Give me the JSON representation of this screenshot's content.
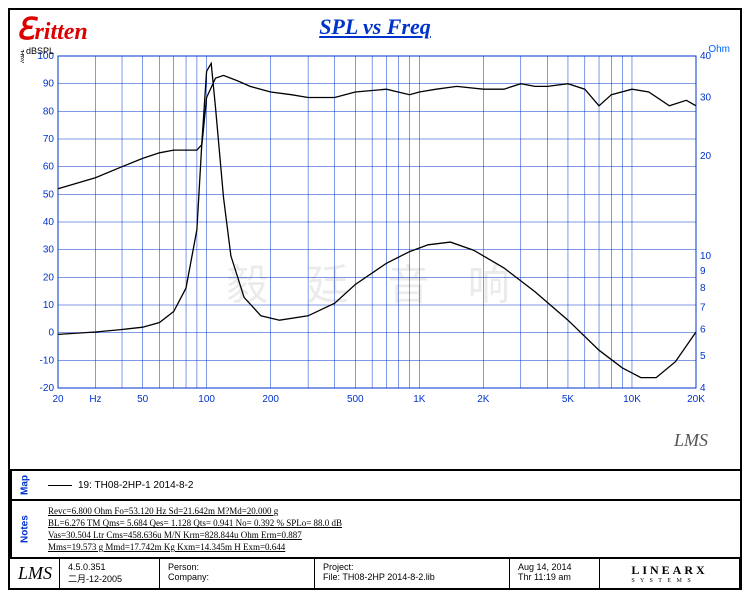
{
  "title": "SPL vs Freq",
  "logo": {
    "main": "ritten",
    "sub": "毅廷音响"
  },
  "watermark": "毅 廷 音 响",
  "lms_mark": "LMS",
  "right_axis_label": "Ohm",
  "left_axis_tag": "dBSPL",
  "chart": {
    "left_ticks": [
      -20,
      -10,
      0,
      10,
      20,
      30,
      40,
      50,
      60,
      70,
      80,
      90,
      100
    ],
    "right_ticks": [
      4,
      5,
      6,
      7,
      8,
      9,
      10,
      20,
      30,
      40
    ],
    "x_ticks": [
      20,
      50,
      100,
      200,
      500,
      "1K",
      "2K",
      "5K",
      "10K",
      "20K"
    ],
    "x_hz_label": "Hz",
    "xlim_log": [
      20,
      20000
    ],
    "ylim_left": [
      -20,
      100
    ],
    "ylim_right_log": [
      4,
      40
    ],
    "colors": {
      "axis": "#0033cc",
      "curve": "#000000",
      "bg": "#ffffff"
    },
    "spl_curve": [
      [
        20,
        52
      ],
      [
        30,
        56
      ],
      [
        40,
        60
      ],
      [
        50,
        63
      ],
      [
        60,
        65
      ],
      [
        70,
        66
      ],
      [
        80,
        66
      ],
      [
        90,
        66
      ],
      [
        95,
        68
      ],
      [
        100,
        85
      ],
      [
        110,
        92
      ],
      [
        120,
        93
      ],
      [
        140,
        91
      ],
      [
        160,
        89
      ],
      [
        200,
        87
      ],
      [
        250,
        86
      ],
      [
        300,
        85
      ],
      [
        400,
        85
      ],
      [
        500,
        87
      ],
      [
        700,
        88
      ],
      [
        900,
        86
      ],
      [
        1000,
        87
      ],
      [
        1200,
        88
      ],
      [
        1500,
        89
      ],
      [
        2000,
        88
      ],
      [
        2500,
        88
      ],
      [
        3000,
        90
      ],
      [
        3500,
        89
      ],
      [
        4000,
        89
      ],
      [
        5000,
        90
      ],
      [
        6000,
        88
      ],
      [
        7000,
        82
      ],
      [
        8000,
        86
      ],
      [
        10000,
        88
      ],
      [
        12000,
        87
      ],
      [
        15000,
        82
      ],
      [
        18000,
        84
      ],
      [
        20000,
        82
      ]
    ],
    "imp_curve": [
      [
        20,
        5.8
      ],
      [
        30,
        5.9
      ],
      [
        40,
        6.0
      ],
      [
        50,
        6.1
      ],
      [
        60,
        6.3
      ],
      [
        70,
        6.8
      ],
      [
        80,
        8.0
      ],
      [
        90,
        12
      ],
      [
        95,
        22
      ],
      [
        100,
        36
      ],
      [
        105,
        38
      ],
      [
        110,
        28
      ],
      [
        120,
        15
      ],
      [
        130,
        10
      ],
      [
        150,
        7.5
      ],
      [
        180,
        6.6
      ],
      [
        220,
        6.4
      ],
      [
        300,
        6.6
      ],
      [
        400,
        7.2
      ],
      [
        500,
        8.2
      ],
      [
        700,
        9.5
      ],
      [
        900,
        10.3
      ],
      [
        1100,
        10.8
      ],
      [
        1400,
        11.0
      ],
      [
        1800,
        10.4
      ],
      [
        2500,
        9.2
      ],
      [
        3500,
        7.8
      ],
      [
        5000,
        6.4
      ],
      [
        7000,
        5.2
      ],
      [
        9000,
        4.6
      ],
      [
        11000,
        4.3
      ],
      [
        13000,
        4.3
      ],
      [
        16000,
        4.8
      ],
      [
        20000,
        5.9
      ]
    ]
  },
  "map": {
    "label": "Map",
    "line": "19: TH08-2HP-1  2014-8-2"
  },
  "notes": {
    "label": "Notes",
    "lines": [
      "Revc=6.800 Ohm  Fo=53.120 Hz  Sd=21.642m M?Md=20.000 g",
      "BL=6.276 TM  Qms= 5.684  Qes= 1.128  Qts= 0.941  No= 0.392 %  SPLo= 88.0 dB",
      "Vas=30.504 Ltr  Cms=458.636u M/N  Krm=828.844u Ohm  Erm=0.887",
      "Mms=19.573 g  Mmd=17.742m Kg  Kxm=14.345m H  Exm=0.644"
    ]
  },
  "footer": {
    "lms": "LMS",
    "version": "4.5.0.351",
    "date_small": "二月-12-2005",
    "person_lbl": "Person:",
    "company_lbl": "Company:",
    "project_lbl": "Project:",
    "file_line": "File: TH08-2HP   2014-8-2.lib",
    "date": "Aug 14, 2014",
    "time": "Thr 11:19 am",
    "brand": "LINEARX",
    "brand_sub": "S Y S T E M S"
  }
}
